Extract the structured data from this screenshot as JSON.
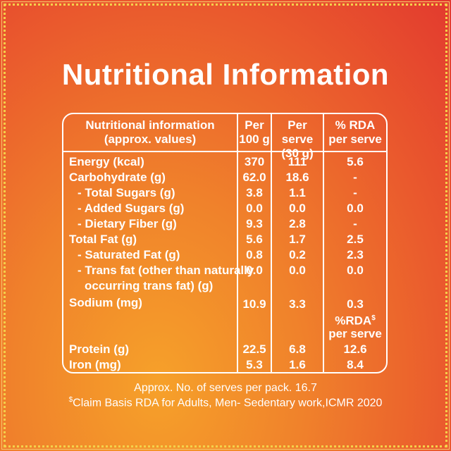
{
  "title": "Nutritional Information",
  "header": {
    "col1_line1": "Nutritional information",
    "col1_line2": "(approx. values)",
    "col2_line1": "Per",
    "col2_line2": "100 g",
    "col3_line1": "Per serve",
    "col3_line2": "(30 g)",
    "col4_line1": "% RDA",
    "col4_line2": "per serve"
  },
  "rows": [
    {
      "label": "Energy (kcal)",
      "per100": "370",
      "serve": "111",
      "rda": "5.6"
    },
    {
      "label": "Carbohydrate (g)",
      "per100": "62.0",
      "serve": "18.6",
      "rda": "-"
    },
    {
      "label": "- Total Sugars (g)",
      "per100": "3.8",
      "serve": "1.1",
      "rda": "-"
    },
    {
      "label": "- Added Sugars (g)",
      "per100": "0.0",
      "serve": "0.0",
      "rda": "0.0"
    },
    {
      "label": "- Dietary Fiber (g)",
      "per100": "9.3",
      "serve": "2.8",
      "rda": "-"
    },
    {
      "label": "Total Fat (g)",
      "per100": "5.6",
      "serve": "1.7",
      "rda": "2.5"
    },
    {
      "label": "- Saturated Fat (g)",
      "per100": "0.8",
      "serve": "0.2",
      "rda": "2.3"
    },
    {
      "label": "- Trans fat (other than naturally",
      "label2": "occurring trans fat) (g)",
      "per100": "0.0",
      "serve": "0.0",
      "rda": "0.0"
    },
    {
      "label": "Sodium (mg)",
      "per100": "10.9",
      "serve": "3.3",
      "rda": "0.3"
    },
    {
      "label": "Protein (g)",
      "per100": "22.5",
      "serve": "6.8",
      "rda": "12.6"
    },
    {
      "label": "Iron (mg)",
      "per100": "5.3",
      "serve": "1.6",
      "rda": "8.4"
    }
  ],
  "rda_note": {
    "text": "%RDA",
    "sup": "$",
    "line2": "per serve"
  },
  "footer": {
    "serves": "Approx. No. of serves per pack. 16.7",
    "claim_sup": "$",
    "claim": "Claim Basis RDA for Adults, Men- Sedentary work,ICMR 2020"
  },
  "colors": {
    "accent": "#ffffff",
    "bg_top": "#e23a2e",
    "bg_bottom": "#f6a12a"
  }
}
